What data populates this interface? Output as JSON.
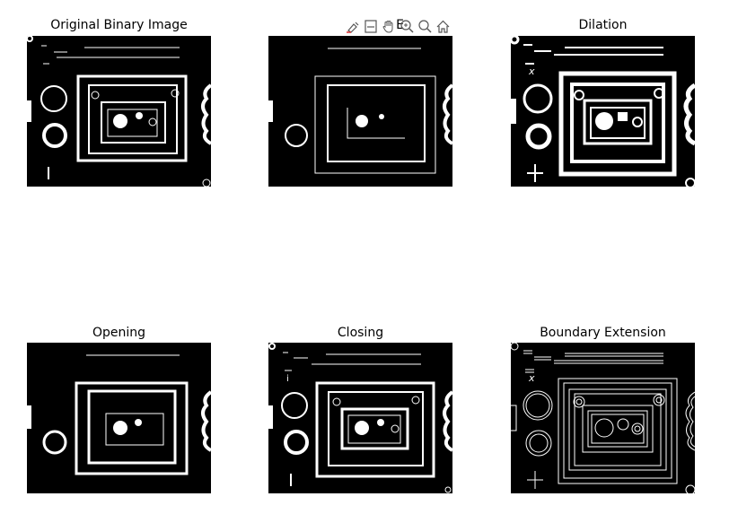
{
  "panels": [
    {
      "title": "Original Binary Image"
    },
    {
      "title": "E"
    },
    {
      "title": "Dilation"
    },
    {
      "title": "Opening"
    },
    {
      "title": "Closing"
    },
    {
      "title": "Boundary Extension"
    }
  ],
  "toolbar": {
    "buttons": [
      {
        "icon": "brush-icon"
      },
      {
        "icon": "data-tip-icon"
      },
      {
        "icon": "pan-hand-icon"
      },
      {
        "icon": "zoom-in-icon"
      },
      {
        "icon": "zoom-out-icon"
      },
      {
        "icon": "home-icon"
      }
    ]
  },
  "colors": {
    "background": "#ffffff",
    "image_bg": "#000000",
    "foreground": "#ffffff"
  }
}
